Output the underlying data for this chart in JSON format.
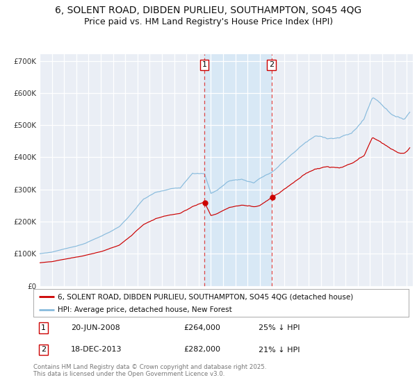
{
  "title_line1": "6, SOLENT ROAD, DIBDEN PURLIEU, SOUTHAMPTON, SO45 4QG",
  "title_line2": "Price paid vs. HM Land Registry's House Price Index (HPI)",
  "legend_label_red": "6, SOLENT ROAD, DIBDEN PURLIEU, SOUTHAMPTON, SO45 4QG (detached house)",
  "legend_label_blue": "HPI: Average price, detached house, New Forest",
  "footer": "Contains HM Land Registry data © Crown copyright and database right 2025.\nThis data is licensed under the Open Government Licence v3.0.",
  "transaction1_date": "20-JUN-2008",
  "transaction1_price": 264000,
  "transaction1_hpi_diff": "25% ↓ HPI",
  "transaction2_date": "18-DEC-2013",
  "transaction2_price": 282000,
  "transaction2_hpi_diff": "21% ↓ HPI",
  "transaction1_year": 2008.47,
  "transaction2_year": 2013.96,
  "ylim": [
    0,
    720000
  ],
  "xlim_start": 1995.0,
  "xlim_end": 2025.5,
  "background_color": "#ffffff",
  "plot_bg_color": "#eaeef5",
  "grid_color": "#ffffff",
  "red_line_color": "#cc0000",
  "blue_line_color": "#88bbdd",
  "shade_color": "#d8e8f5",
  "vline_color": "#dd4444",
  "title_fontsize": 10,
  "subtitle_fontsize": 9,
  "tick_fontsize": 7.5,
  "legend_fontsize": 8
}
